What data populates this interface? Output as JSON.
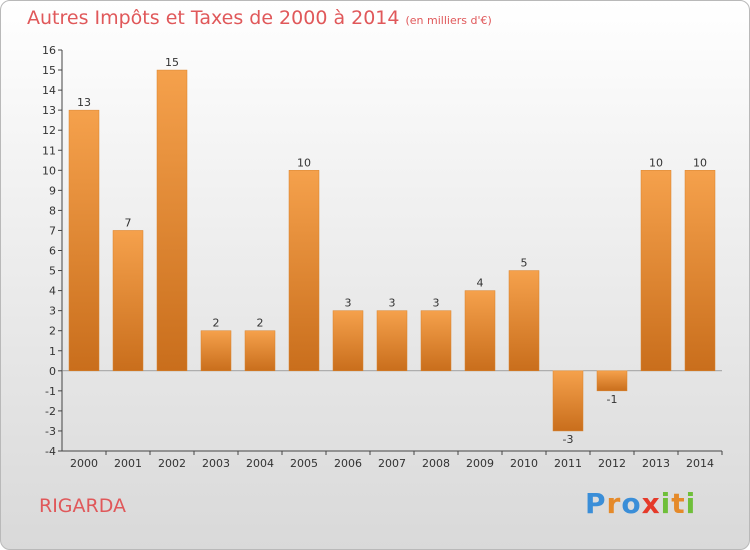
{
  "header": {
    "title": "Autres Impôts et Taxes de 2000 à 2014",
    "subtitle": "(en milliers d'€)"
  },
  "footer": {
    "commune": "RIGARDA",
    "logo_text": "Proxiti"
  },
  "colors": {
    "bar_light": "#f5a14c",
    "bar_dark": "#c96e1c",
    "title": "#e0585a",
    "logo": [
      "#3a8ed8",
      "#e58a2a",
      "#3a8ed8",
      "#e53a2a",
      "#6fbf3a",
      "#e58a2a",
      "#6fbf3a"
    ]
  },
  "chart_data": {
    "type": "bar",
    "title": "Autres Impôts et Taxes de 2000 à 2014",
    "subtitle": "(en milliers d'€)",
    "categories": [
      "2000",
      "2001",
      "2002",
      "2003",
      "2004",
      "2005",
      "2006",
      "2007",
      "2008",
      "2009",
      "2010",
      "2011",
      "2012",
      "2013",
      "2014"
    ],
    "values": [
      13,
      7,
      15,
      2,
      2,
      10,
      3,
      3,
      3,
      4,
      5,
      -3,
      -1,
      10,
      10
    ],
    "value_labels": [
      "13",
      "7",
      "15",
      "2",
      "2",
      "10",
      "3",
      "3",
      "3",
      "4",
      "5",
      "-3",
      "-1",
      "10",
      "10"
    ],
    "y_ticks": [
      "-4",
      "-3",
      "-2",
      "-1",
      "0",
      "1",
      "2",
      "3",
      "4",
      "5",
      "6",
      "7",
      "8",
      "9",
      "10",
      "11",
      "12",
      "13",
      "14",
      "15",
      "16"
    ],
    "ylim": [
      -4,
      16
    ],
    "grid": false,
    "legend": "none"
  }
}
